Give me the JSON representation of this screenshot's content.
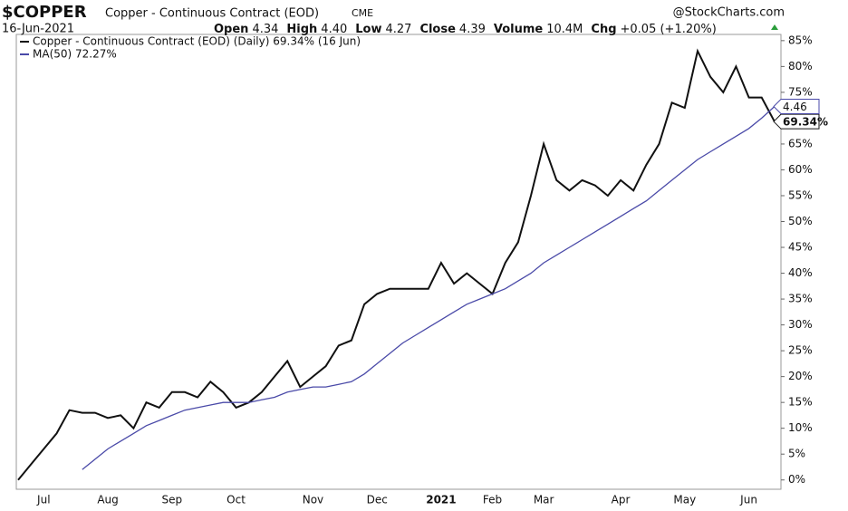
{
  "chart_data": {
    "type": "line",
    "symbol": "$COPPER",
    "title": "Copper - Continuous Contract (EOD)",
    "exchange": "CME",
    "watermark": "@StockCharts.com",
    "date": "16-Jun-2021",
    "quote": [
      {
        "label": "Open",
        "value": "4.34"
      },
      {
        "label": "High",
        "value": "4.40"
      },
      {
        "label": "Low",
        "value": "4.27"
      },
      {
        "label": "Close",
        "value": "4.39"
      },
      {
        "label": "Volume",
        "value": "10.4M"
      },
      {
        "label": "Chg",
        "value": "+0.05 (+1.20%)"
      }
    ],
    "categories": [
      null,
      null,
      "Jul",
      null,
      null,
      null,
      null,
      "Aug",
      null,
      null,
      null,
      null,
      "Sep",
      null,
      null,
      null,
      null,
      "Oct",
      null,
      null,
      null,
      null,
      null,
      "Nov",
      null,
      null,
      null,
      null,
      "Dec",
      null,
      null,
      null,
      null,
      "2021",
      null,
      null,
      null,
      "Feb",
      null,
      null,
      null,
      "Mar",
      null,
      null,
      null,
      null,
      null,
      "Apr",
      null,
      null,
      null,
      null,
      "May",
      null,
      null,
      null,
      null,
      "Jun",
      null,
      null
    ],
    "series": [
      {
        "name": "Copper - Continuous Contract (EOD) (Daily) 69.34% (16 Jun)",
        "color": "#111111",
        "tag": "69.34%",
        "values": [
          0,
          3,
          6,
          9,
          13.5,
          13,
          13,
          12,
          12.5,
          10,
          15,
          14,
          17,
          17,
          16,
          19,
          17,
          14,
          15,
          17,
          20,
          23,
          18,
          20,
          22,
          26,
          27,
          34,
          36,
          37,
          37,
          37,
          37,
          42,
          38,
          40,
          38,
          36,
          42,
          46,
          55,
          65,
          58,
          56,
          58,
          57,
          55,
          58,
          56,
          61,
          65,
          73,
          72,
          83,
          78,
          75,
          80,
          74,
          74,
          69.34
        ]
      },
      {
        "name": "MA(50) 72.27%",
        "color": "#4a4aa8",
        "tag": "4.46",
        "values": [
          null,
          null,
          null,
          null,
          null,
          2,
          4,
          6,
          7.5,
          9,
          10.5,
          11.5,
          12.5,
          13.5,
          14,
          14.5,
          15,
          15,
          15,
          15.5,
          16,
          17,
          17.5,
          18,
          18,
          18.5,
          19,
          20.5,
          22.5,
          24.5,
          26.5,
          28,
          29.5,
          31,
          32.5,
          34,
          35,
          36,
          37,
          38.5,
          40,
          42,
          43.5,
          45,
          46.5,
          48,
          49.5,
          51,
          52.5,
          54,
          56,
          58,
          60,
          62,
          63.5,
          65,
          66.5,
          68,
          70,
          72.27
        ]
      }
    ],
    "ylim": [
      -1.8,
      86.2
    ],
    "yticks": [
      {
        "value": 0,
        "label": "0%"
      },
      {
        "value": 5,
        "label": "5%"
      },
      {
        "value": 10,
        "label": "10%"
      },
      {
        "value": 15,
        "label": "15%"
      },
      {
        "value": 20,
        "label": "20%"
      },
      {
        "value": 25,
        "label": "25%"
      },
      {
        "value": 30,
        "label": "30%"
      },
      {
        "value": 35,
        "label": "35%"
      },
      {
        "value": 40,
        "label": "40%"
      },
      {
        "value": 45,
        "label": "45%"
      },
      {
        "value": 50,
        "label": "50%"
      },
      {
        "value": 55,
        "label": "55%"
      },
      {
        "value": 60,
        "label": "60%"
      },
      {
        "value": 65,
        "label": "65%"
      },
      {
        "value": 70,
        "label": "70%"
      },
      {
        "value": 75,
        "label": "75%"
      },
      {
        "value": 80,
        "label": "80%"
      },
      {
        "value": 85,
        "label": "85%"
      }
    ]
  }
}
